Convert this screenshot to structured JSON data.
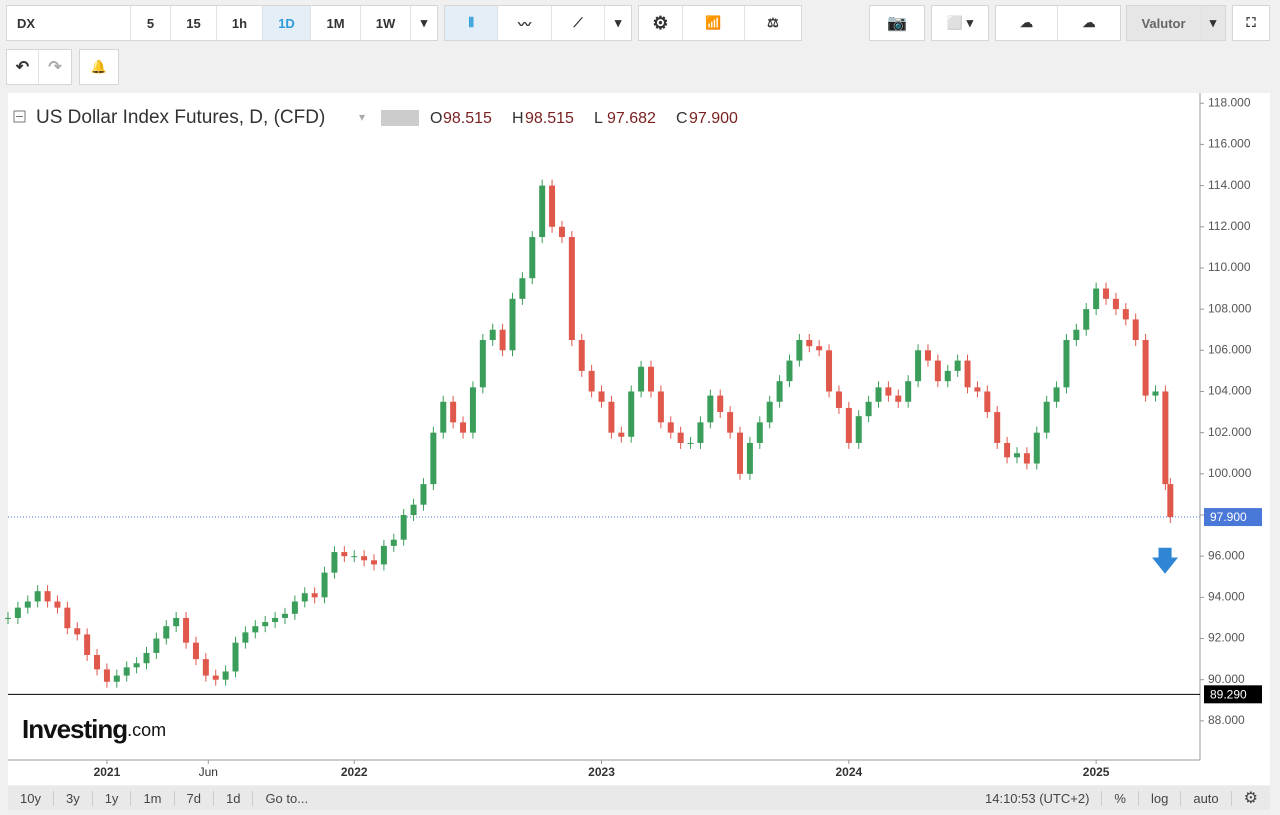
{
  "toolbar": {
    "symbol": "DX",
    "intervals": [
      "5",
      "15",
      "1h",
      "1D",
      "1M",
      "1W"
    ],
    "currency": "Valutor"
  },
  "chart_data": {
    "type": "candlestick",
    "title": "US Dollar Index Futures, D, (CFD)",
    "ohlc": {
      "names": [
        "O",
        "H",
        "L",
        "C"
      ],
      "values": [
        98.515,
        98.515,
        97.682,
        97.9
      ],
      "value_labels": [
        "98.515",
        "98.515",
        "97.682",
        "97.900"
      ]
    },
    "x": [
      2020.6,
      2020.64,
      2020.68,
      2020.72,
      2020.76,
      2020.8,
      2020.84,
      2020.88,
      2020.92,
      2020.96,
      2021,
      2021.04,
      2021.08,
      2021.12,
      2021.16,
      2021.2,
      2021.24,
      2021.28,
      2021.32,
      2021.36,
      2021.4,
      2021.44,
      2021.48,
      2021.52,
      2021.56,
      2021.6,
      2021.64,
      2021.68,
      2021.72,
      2021.76,
      2021.8,
      2021.84,
      2021.88,
      2021.92,
      2021.96,
      2022,
      2022.04,
      2022.08,
      2022.12,
      2022.16,
      2022.2,
      2022.24,
      2022.28,
      2022.32,
      2022.36,
      2022.4,
      2022.44,
      2022.48,
      2022.52,
      2022.56,
      2022.6,
      2022.64,
      2022.68,
      2022.72,
      2022.76,
      2022.8,
      2022.84,
      2022.88,
      2022.92,
      2022.96,
      2023,
      2023.04,
      2023.08,
      2023.12,
      2023.16,
      2023.2,
      2023.24,
      2023.28,
      2023.32,
      2023.36,
      2023.4,
      2023.44,
      2023.48,
      2023.52,
      2023.56,
      2023.6,
      2023.64,
      2023.68,
      2023.72,
      2023.76,
      2023.8,
      2023.84,
      2023.88,
      2023.92,
      2023.96,
      2024,
      2024.04,
      2024.08,
      2024.12,
      2024.16,
      2024.2,
      2024.24,
      2024.28,
      2024.32,
      2024.36,
      2024.4,
      2024.44,
      2024.48,
      2024.52,
      2024.56,
      2024.6,
      2024.64,
      2024.68,
      2024.72,
      2024.76,
      2024.8,
      2024.84,
      2024.88,
      2024.92,
      2024.96,
      2025,
      2025.04,
      2025.08,
      2025.12,
      2025.16,
      2025.2,
      2025.24,
      2025.28,
      2025.3
    ],
    "series": [
      {
        "name": "DX",
        "values": [
          93.0,
          93.5,
          93.8,
          94.3,
          93.8,
          93.5,
          92.5,
          92.2,
          91.2,
          90.5,
          89.9,
          90.2,
          90.6,
          90.8,
          91.3,
          92.0,
          92.6,
          93.0,
          91.8,
          91.0,
          90.2,
          90.0,
          90.4,
          91.8,
          92.3,
          92.6,
          92.8,
          93.0,
          93.2,
          93.8,
          94.2,
          94.0,
          95.2,
          96.2,
          96.0,
          96.0,
          95.8,
          95.6,
          96.5,
          96.8,
          98.0,
          98.5,
          99.5,
          102.0,
          103.5,
          102.5,
          102.0,
          104.2,
          106.5,
          107.0,
          106.0,
          108.5,
          109.5,
          111.5,
          114.0,
          112.0,
          111.5,
          106.5,
          105.0,
          104.0,
          103.5,
          102.0,
          101.8,
          104.0,
          105.2,
          104.0,
          102.5,
          102.0,
          101.5,
          101.5,
          102.5,
          103.8,
          103.0,
          102.0,
          100.0,
          101.5,
          102.5,
          103.5,
          104.5,
          105.5,
          106.5,
          106.2,
          106.0,
          104.0,
          103.2,
          101.5,
          102.8,
          103.5,
          104.2,
          103.8,
          103.5,
          104.5,
          106.0,
          105.5,
          104.5,
          105.0,
          105.5,
          104.2,
          104.0,
          103.0,
          101.5,
          100.8,
          101.0,
          100.5,
          102.0,
          103.5,
          104.2,
          106.5,
          107.0,
          108.0,
          109.0,
          108.5,
          108.0,
          107.5,
          106.5,
          103.8,
          104.0,
          99.5,
          97.9
        ]
      }
    ],
    "up_color": "#3a9e5a",
    "down_color": "#e0574c",
    "xlim": [
      2020.6,
      2025.42
    ],
    "xticks": [
      2021,
      {
        "value": 2021.41,
        "label": "Jun"
      },
      2022,
      2023,
      2024,
      2025
    ],
    "ylim": [
      86.1,
      118.4
    ],
    "yticks": [
      {
        "value": 88,
        "label": "88.000"
      },
      {
        "value": 90,
        "label": "90.000"
      },
      {
        "value": 92,
        "label": "92.000"
      },
      {
        "value": 94,
        "label": "94.000"
      },
      {
        "value": 96,
        "label": "96.000"
      },
      {
        "value": 98,
        "label": "98.000"
      },
      {
        "value": 100,
        "label": "100.000"
      },
      {
        "value": 102,
        "label": "102.000"
      },
      {
        "value": 104,
        "label": "104.000"
      },
      {
        "value": 106,
        "label": "106.000"
      },
      {
        "value": 108,
        "label": "108.000"
      },
      {
        "value": 110,
        "label": "110.000"
      },
      {
        "value": 112,
        "label": "112.000"
      },
      {
        "value": 114,
        "label": "114.000"
      },
      {
        "value": 116,
        "label": "116.000"
      },
      {
        "value": 118,
        "label": "118.000"
      }
    ],
    "levels": [
      {
        "value": 97.9,
        "label": "97.900"
      },
      {
        "value": 89.29,
        "label": "89.290"
      }
    ],
    "watermark": {
      "brand": "Investing",
      "suffix": ".com"
    }
  },
  "footer": {
    "ranges": [
      "10y",
      "3y",
      "1y",
      "1m",
      "7d",
      "1d",
      "Go to..."
    ],
    "time": "14:10:53 (UTC+2)",
    "scales": [
      "%",
      "log",
      "auto"
    ]
  }
}
